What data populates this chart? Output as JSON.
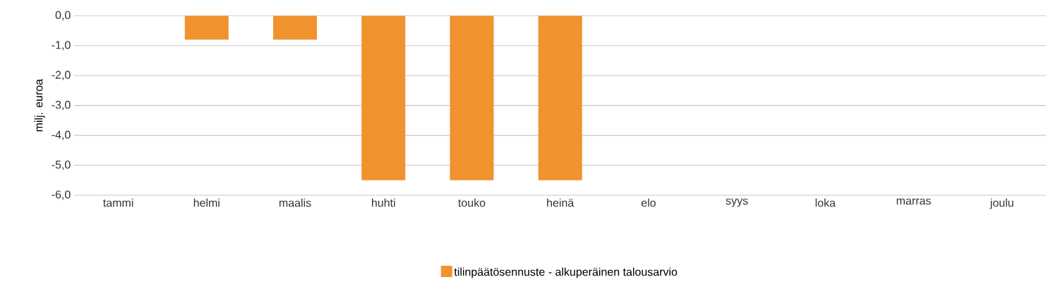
{
  "chart_data": {
    "type": "bar",
    "ylabel": "milj. euroa",
    "categories": [
      "tammi",
      "helmi",
      "maalis",
      "huhti",
      "touko",
      "heinä",
      "elo",
      "syys",
      "loka",
      "marras",
      "joulu"
    ],
    "series": [
      {
        "name": "tilinpäätösennuste - alkuperäinen talousarvio",
        "color": "#f0922e",
        "values": [
          null,
          -0.8,
          -0.8,
          -5.5,
          -5.5,
          -5.5,
          null,
          null,
          null,
          null,
          null
        ]
      }
    ],
    "ylim": [
      -6,
      0
    ],
    "yticks": [
      {
        "value": -6,
        "label": "-6,0"
      },
      {
        "value": -5,
        "label": "-5,0"
      },
      {
        "value": -4,
        "label": "-4,0"
      },
      {
        "value": -3,
        "label": "-3,0"
      },
      {
        "value": -2,
        "label": "-2,0"
      },
      {
        "value": -1,
        "label": "-1,0"
      },
      {
        "value": 0,
        "label": "0,0"
      }
    ],
    "grid": "y",
    "legend": "bottom"
  }
}
